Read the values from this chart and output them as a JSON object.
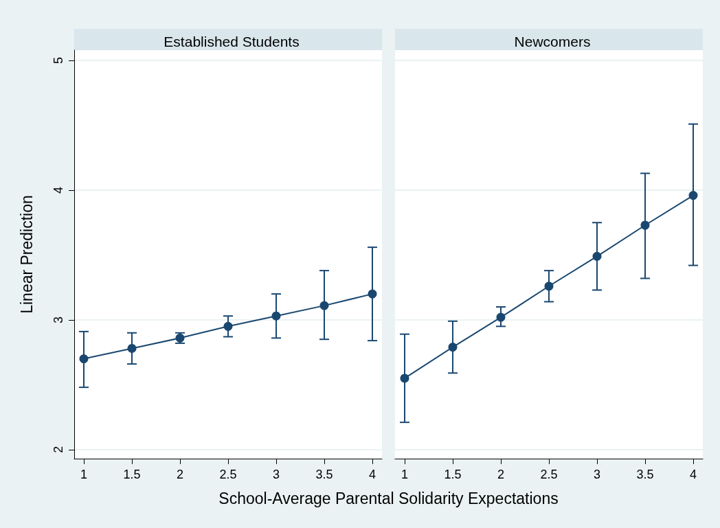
{
  "chart_data": [
    {
      "type": "line",
      "title": "Established Students",
      "xlabel": "School-Average Parental Solidarity Expectations",
      "ylabel": "Linear Prediction",
      "x": [
        1,
        1.5,
        2,
        2.5,
        3,
        3.5,
        4
      ],
      "xlim": [
        0.9,
        4.1
      ],
      "xticks": [
        1,
        1.5,
        2,
        2.5,
        3,
        3.5,
        4
      ],
      "ylim": [
        1.93,
        5.08
      ],
      "yticks": [
        2,
        3,
        4,
        5
      ],
      "grid": "y",
      "marker": "circle",
      "line_style": "solid",
      "series": [
        {
          "color": "#1a476f",
          "values": [
            2.7,
            2.78,
            2.86,
            2.95,
            3.03,
            3.11,
            3.2
          ],
          "errors": [
            [
              2.48,
              2.91
            ],
            [
              2.66,
              2.9
            ],
            [
              2.82,
              2.9
            ],
            [
              2.87,
              3.03
            ],
            [
              2.86,
              3.2
            ],
            [
              2.85,
              3.38
            ],
            [
              2.84,
              3.56
            ]
          ]
        }
      ]
    },
    {
      "type": "line",
      "title": "Newcomers",
      "x": [
        1,
        1.5,
        2,
        2.5,
        3,
        3.5,
        4
      ],
      "xlim": [
        0.9,
        4.1
      ],
      "xticks": [
        1,
        1.5,
        2,
        2.5,
        3,
        3.5,
        4
      ],
      "ylim": [
        1.93,
        5.08
      ],
      "yticks": [
        2,
        3,
        4,
        5
      ],
      "tick_labels": "x",
      "grid": "y",
      "marker": "circle",
      "line_style": "solid",
      "series": [
        {
          "color": "#1a476f",
          "values": [
            2.55,
            2.79,
            3.02,
            3.26,
            3.49,
            3.73,
            3.96
          ],
          "errors": [
            [
              2.21,
              2.89
            ],
            [
              2.59,
              2.99
            ],
            [
              2.95,
              3.1
            ],
            [
              3.14,
              3.38
            ],
            [
              3.23,
              3.75
            ],
            [
              3.32,
              4.13
            ],
            [
              3.42,
              4.51
            ]
          ]
        }
      ]
    }
  ]
}
